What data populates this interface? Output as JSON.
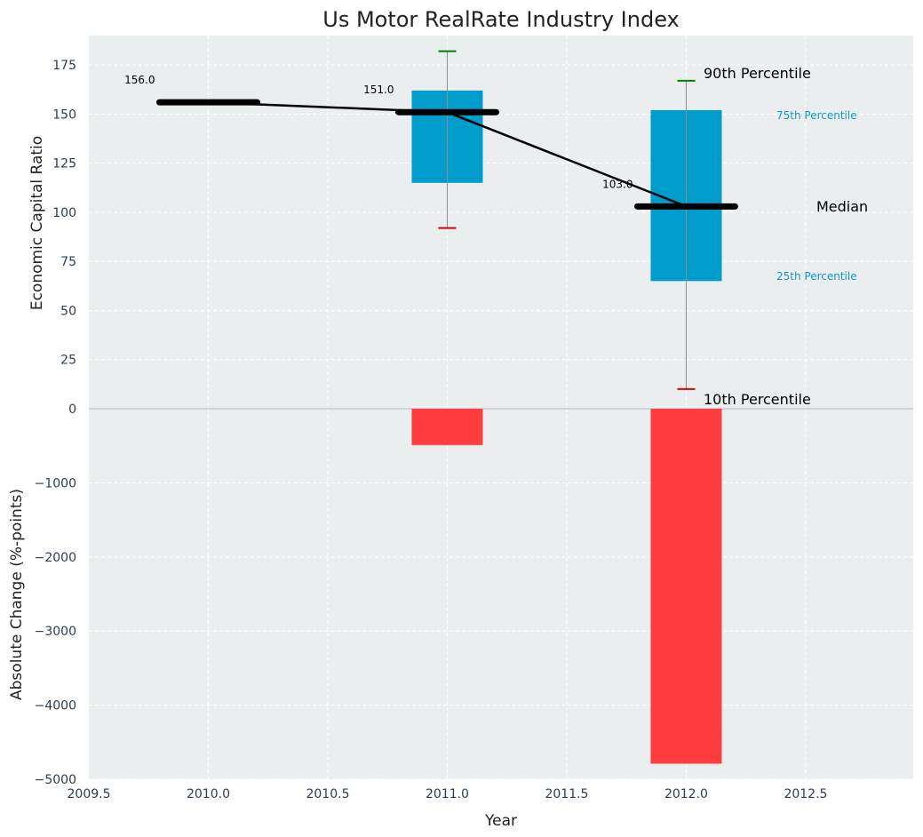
{
  "chart_data": {
    "type": "bar",
    "title": "Us Motor RealRate Industry Index",
    "xlabel": "Year",
    "x_ticks": [
      "2009.5",
      "2010.0",
      "2010.5",
      "2011.0",
      "2011.5",
      "2012.0",
      "2012.5"
    ],
    "xlim": [
      2009.5,
      2012.95
    ],
    "top_panel": {
      "ylabel": "Economic Capital Ratio",
      "ylim": [
        0,
        190
      ],
      "y_ticks": [
        "0",
        "25",
        "50",
        "75",
        "100",
        "125",
        "150",
        "175"
      ],
      "boxes": [
        {
          "year": 2011,
          "p10": 92,
          "p25": 115,
          "median": 151,
          "p75": 162,
          "p90": 182
        },
        {
          "year": 2012,
          "p10": 10,
          "p25": 65,
          "median": 103,
          "p75": 152,
          "p90": 167
        }
      ],
      "industry_index": [
        {
          "year": 2010,
          "value": 156,
          "label": "156.0"
        },
        {
          "year": 2011,
          "value": 151,
          "label": "151.0"
        },
        {
          "year": 2012,
          "value": 103,
          "label": "103.0"
        }
      ],
      "legend_labels": {
        "p90": "90th Percentile",
        "p75": "75th Percentile",
        "median": "Median",
        "p25": "25th Percentile",
        "p10": "10th Percentile"
      }
    },
    "bottom_panel": {
      "ylabel": "Absolute Change (%-points)",
      "ylim": [
        -5000,
        0
      ],
      "y_ticks": [
        "0",
        "−1000",
        "−2000",
        "−3000",
        "−4000",
        "−5000"
      ],
      "bars": [
        {
          "year": 2011,
          "value": -490
        },
        {
          "year": 2012,
          "value": -4790
        }
      ]
    },
    "grid": true,
    "colors": {
      "background": "#eaeeef",
      "box": "#009ccc",
      "negative_bar": "#ff3d3f",
      "line": "#000000",
      "p90_cap": "#008000",
      "p10_cap": "#e00000",
      "tick_text": "#2b3e50",
      "annotation_blue": "#1097c8"
    }
  }
}
